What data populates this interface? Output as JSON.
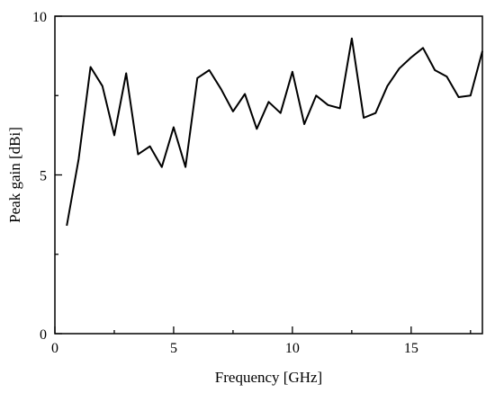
{
  "chart_data": {
    "type": "line",
    "title": "",
    "xlabel": "Frequency [GHz]",
    "ylabel": "Peak gain [dBi]",
    "xlim": [
      0,
      18
    ],
    "ylim": [
      0,
      10
    ],
    "x_ticks": [
      0,
      5,
      10,
      15
    ],
    "x_tick_labels": [
      "0",
      "5",
      "10",
      "15"
    ],
    "x_minor_ticks": [
      2.5,
      7.5,
      12.5,
      17.5
    ],
    "y_ticks": [
      0,
      5,
      10
    ],
    "y_tick_labels": [
      "0",
      "5",
      "10"
    ],
    "y_minor_ticks": [
      2.5,
      7.5
    ],
    "grid": false,
    "legend": "none",
    "line_color": "#000000",
    "series": [
      {
        "x": [
          0.5,
          1.0,
          1.5,
          2.0,
          2.5,
          3.0,
          3.5,
          4.0,
          4.5,
          5.0,
          5.5,
          6.0,
          6.5,
          7.0,
          7.5,
          8.0,
          8.5,
          9.0,
          9.5,
          10.0,
          10.5,
          11.0,
          11.5,
          12.0,
          12.5,
          13.0,
          13.5,
          14.0,
          14.5,
          15.0,
          15.5,
          16.0,
          16.5,
          17.0,
          17.5,
          18.0
        ],
        "values": [
          3.4,
          5.5,
          8.4,
          7.8,
          6.25,
          8.2,
          5.65,
          5.9,
          5.25,
          6.5,
          5.25,
          8.05,
          8.3,
          7.7,
          7.0,
          7.55,
          6.45,
          7.3,
          6.95,
          8.25,
          6.6,
          7.5,
          7.2,
          7.1,
          9.3,
          6.8,
          6.95,
          7.8,
          8.35,
          8.7,
          9.0,
          8.3,
          8.1,
          7.45,
          7.5,
          8.9
        ]
      }
    ]
  }
}
